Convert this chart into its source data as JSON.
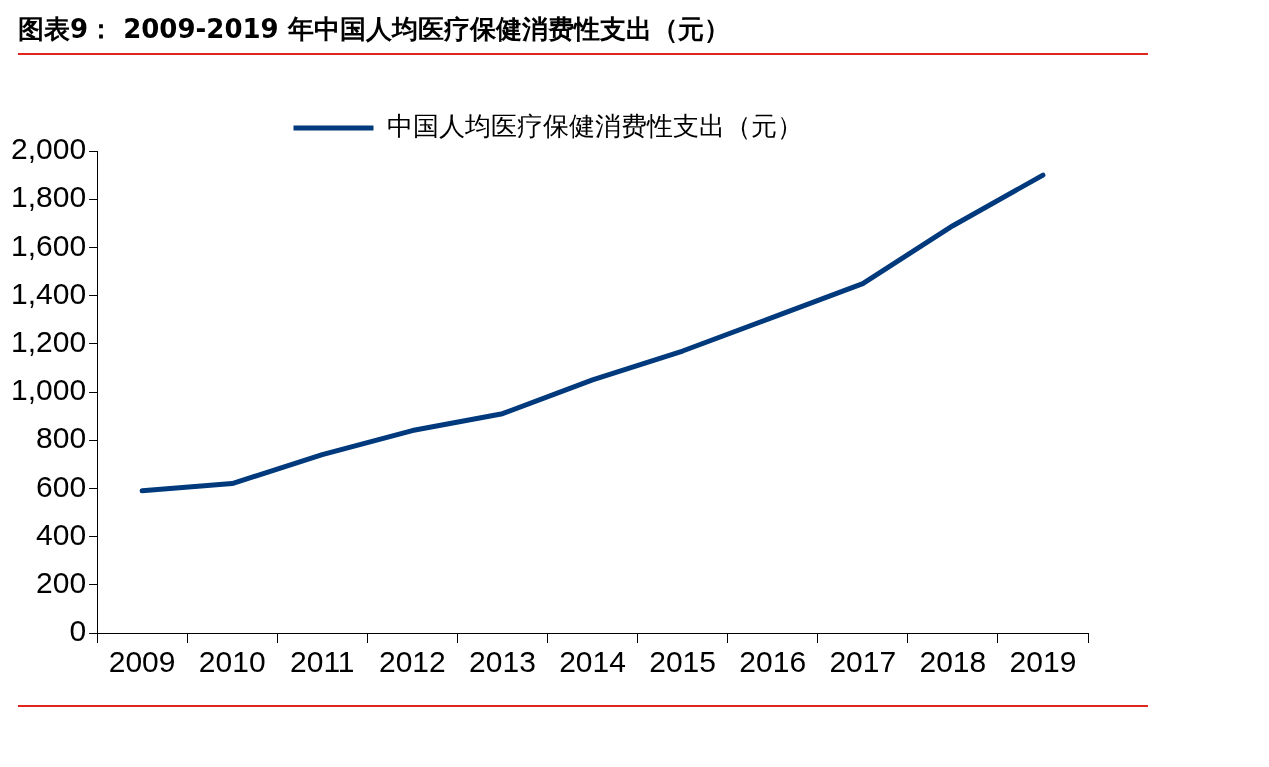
{
  "chart_data": {
    "type": "line",
    "title": "图表9：  2009-2019 年中国人均医疗保健消费性支出（元）",
    "categories": [
      "2009",
      "2010",
      "2011",
      "2012",
      "2013",
      "2014",
      "2015",
      "2016",
      "2017",
      "2018",
      "2019"
    ],
    "series": [
      {
        "name": "中国人均医疗保健消费性支出（元）",
        "color": "#003a7d",
        "values": [
          590,
          620,
          740,
          840,
          910,
          1050,
          1170,
          1310,
          1450,
          1690,
          1900
        ]
      }
    ],
    "ylim": [
      0,
      2000
    ],
    "yticks": [
      0,
      200,
      400,
      600,
      800,
      {
        "value": 1000,
        "label": "1,000"
      },
      {
        "value": 1200,
        "label": "1,200"
      },
      {
        "value": 1400,
        "label": "1,400"
      },
      {
        "value": 1600,
        "label": "1,600"
      },
      {
        "value": 1800,
        "label": "1,800"
      },
      {
        "value": 2000,
        "label": "2,000"
      }
    ],
    "legend": "top",
    "marker": "none",
    "line_style": "solid"
  }
}
